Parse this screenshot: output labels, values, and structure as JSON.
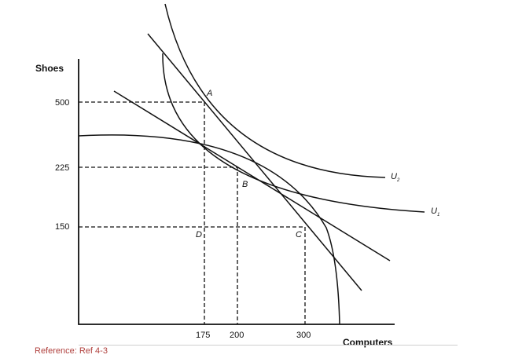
{
  "figure": {
    "y_axis_label": "Shoes",
    "x_axis_label": "Computers",
    "y_ticks": [
      "500",
      "225",
      "150"
    ],
    "x_ticks": [
      "175",
      "200",
      "300"
    ],
    "points": [
      "A",
      "B",
      "C",
      "D"
    ],
    "curve_labels": {
      "u2": "U",
      "u2_sub": "2",
      "u1": "U",
      "u1_sub": "1"
    }
  },
  "footer": {
    "reference": "Reference: Ref 4-3"
  }
}
